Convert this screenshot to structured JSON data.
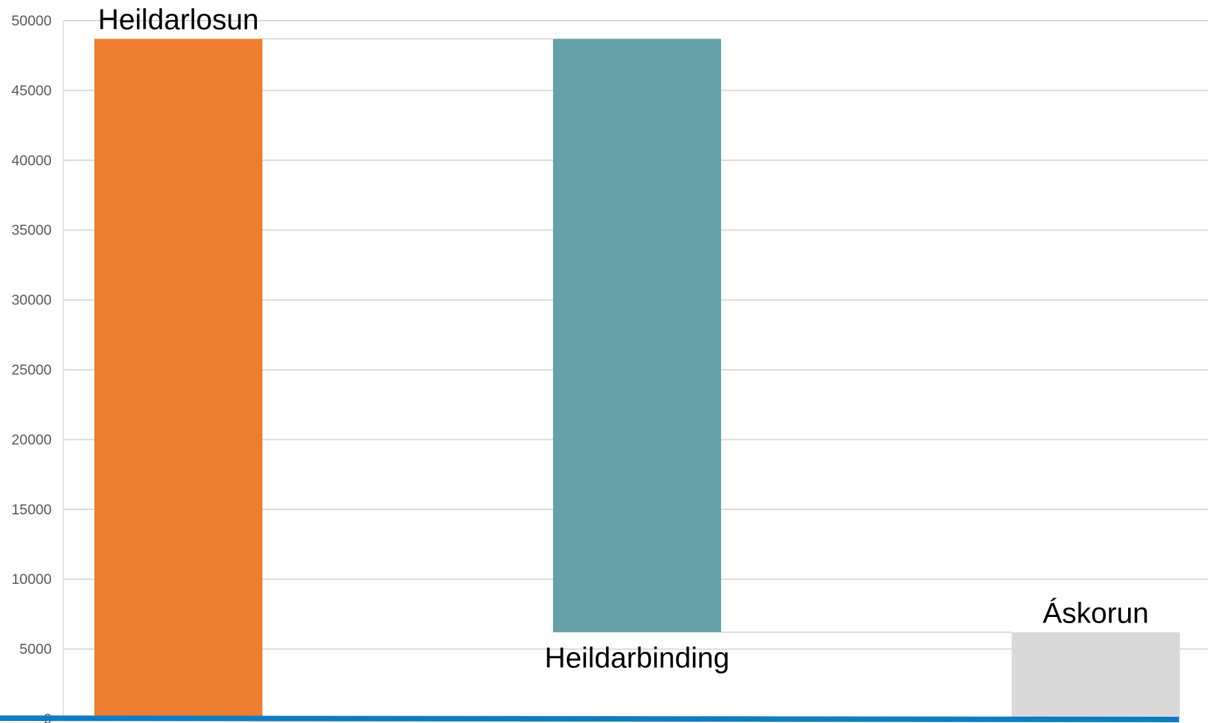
{
  "chart_data": {
    "type": "bar",
    "chart_style": "waterfall",
    "categories": [
      "Heildarlosun",
      "Heildarbinding",
      "Áskorun"
    ],
    "bars": [
      {
        "label": "Heildarlosun",
        "start": 0,
        "end": 48700,
        "color": "#ED7D31"
      },
      {
        "label": "Heildarbinding",
        "start": 6200,
        "end": 48700,
        "color": "#66A1A8"
      },
      {
        "label": "Áskorun",
        "start": 0,
        "end": 6200,
        "color": "#D9D9D9"
      }
    ],
    "y_ticks": [
      "0",
      "5000",
      "10000",
      "15000",
      "20000",
      "25000",
      "30000",
      "35000",
      "40000",
      "45000",
      "50000"
    ],
    "ylim": [
      0,
      50000
    ],
    "grid": true,
    "baseline_color": "#0F7DC2",
    "grid_color": "#D9D9D9",
    "tick_color": "#595959"
  }
}
